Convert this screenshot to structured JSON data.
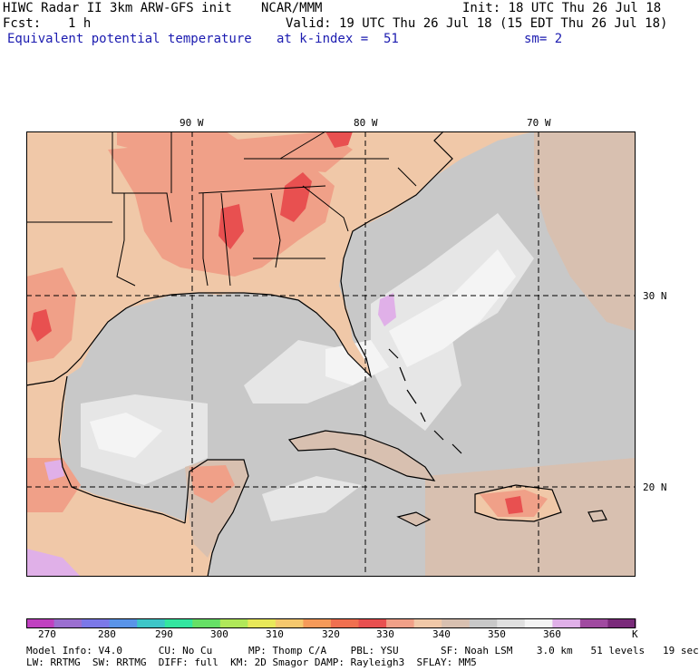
{
  "header": {
    "title": "HIWC Radar II 3km ARW-GFS init",
    "institution": "NCAR/MMM",
    "init": "Init: 18 UTC Thu 26 Jul 18",
    "fcst_label": "Fcst:",
    "fcst_value": "1 h",
    "valid": "Valid: 19 UTC Thu 26 Jul 18 (15 EDT Thu 26 Jul 18)",
    "field": "Equivalent potential temperature",
    "level": "at k-index =  51",
    "smoothing": "sm= 2"
  },
  "axes": {
    "lon_labels": [
      "90 W",
      "80 W",
      "70 W"
    ],
    "lat_labels": [
      "30 N",
      "20 N"
    ]
  },
  "colorbar": {
    "labels": [
      "270",
      "280",
      "290",
      "300",
      "310",
      "320",
      "330",
      "340",
      "350",
      "360"
    ],
    "unit": "K",
    "colors": [
      "#c040c0",
      "#9b6fd0",
      "#7b78e8",
      "#5a94e8",
      "#3ec6c8",
      "#33e6a0",
      "#66e066",
      "#b0e85a",
      "#e8e85a",
      "#f5c86e",
      "#f59a5a",
      "#f07050",
      "#e85050",
      "#f0a088",
      "#f0c8a8",
      "#d8c0b0",
      "#c8c8c8",
      "#e0e0e0",
      "#f4f4f4",
      "#e0b0e8",
      "#a04aa0",
      "#7a2a7a"
    ]
  },
  "footer": {
    "line1": "Model Info: V4.0      CU: No Cu      MP: Thomp C/A    PBL: YSU       SF: Noah LSM    3.0 km   51 levels   19 sec",
    "line2": "LW: RRTMG  SW: RRTMG  DIFF: full  KM: 2D Smagor DAMP: Rayleigh3  SFLAY: MM5"
  },
  "colors": {
    "ocean_gray": "#c8c8c8",
    "land_peach": "#f0c8a8",
    "warm_salmon": "#f0a088",
    "hot_red": "#e85050",
    "light_gray": "#e6e6e6",
    "tan": "#d8c0b0",
    "lavender": "#e0b0e8"
  }
}
